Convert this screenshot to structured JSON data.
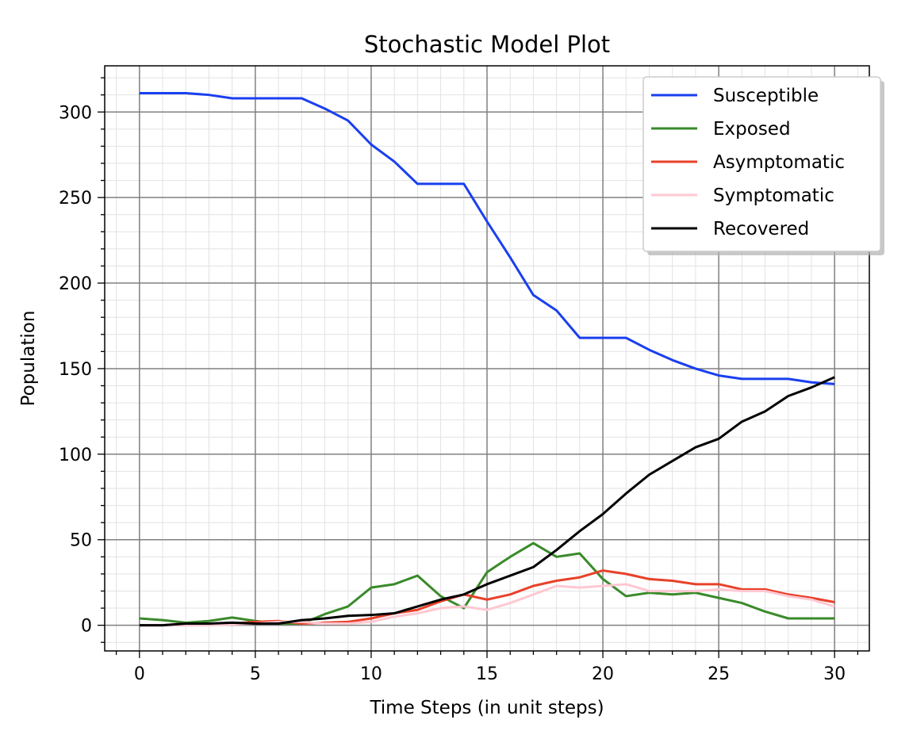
{
  "chart_data": {
    "type": "line",
    "title": "Stochastic Model Plot",
    "xlabel": "Time Steps (in unit steps)",
    "ylabel": "Population",
    "xlim": [
      -1.5,
      31.5
    ],
    "ylim": [
      -15,
      327
    ],
    "xticks": [
      0,
      5,
      10,
      15,
      20,
      25,
      30
    ],
    "yticks": [
      0,
      50,
      100,
      150,
      200,
      250,
      300
    ],
    "grid": true,
    "minor_grid": true,
    "legend_position": "top-right",
    "x": [
      0,
      1,
      2,
      3,
      4,
      5,
      6,
      7,
      8,
      9,
      10,
      11,
      12,
      13,
      14,
      15,
      16,
      17,
      18,
      19,
      20,
      21,
      22,
      23,
      24,
      25,
      26,
      27,
      28,
      29,
      30
    ],
    "series": [
      {
        "name": "Susceptible",
        "color": "#1a3ff0",
        "values": [
          311,
          311,
          311,
          310,
          308,
          308,
          308,
          308,
          302,
          295,
          281,
          271,
          258,
          258,
          258,
          236,
          215,
          193,
          184,
          168,
          168,
          168,
          161,
          155,
          150,
          146,
          144,
          144,
          144,
          142,
          141
        ]
      },
      {
        "name": "Exposed",
        "color": "#3a8a2a",
        "values": [
          4,
          3,
          1.5,
          2.5,
          4.5,
          2.5,
          1,
          1,
          6.5,
          11,
          22,
          24,
          29,
          17,
          10,
          31,
          40,
          48,
          40,
          42,
          27,
          17,
          19,
          18,
          19,
          16,
          13,
          8,
          4,
          4,
          4
        ]
      },
      {
        "name": "Asymptomatic",
        "color": "#e8412a",
        "values": [
          0,
          0,
          1,
          1,
          1,
          2,
          2.5,
          1,
          1.5,
          2,
          4,
          7,
          9,
          14,
          18,
          15,
          18,
          23,
          26,
          28,
          32,
          30,
          27,
          26,
          24,
          24,
          21,
          21,
          18,
          16,
          13.5
        ]
      },
      {
        "name": "Symptomatic",
        "color": "#ffc8d2",
        "values": [
          0,
          0,
          0,
          0,
          0.5,
          1,
          2,
          2,
          1,
          1,
          2,
          5,
          7,
          10,
          11,
          9,
          13,
          18,
          23,
          22,
          23,
          24,
          20,
          20,
          20,
          21,
          20,
          20,
          17,
          15,
          11
        ]
      },
      {
        "name": "Recovered",
        "color": "#000000",
        "values": [
          0,
          0,
          1,
          1,
          1.5,
          1,
          1,
          3,
          4,
          5.5,
          6,
          7,
          11,
          15,
          18,
          24,
          29,
          34,
          44,
          55,
          65,
          77,
          88,
          96,
          104,
          109,
          119,
          125,
          134,
          139,
          145
        ]
      }
    ]
  }
}
